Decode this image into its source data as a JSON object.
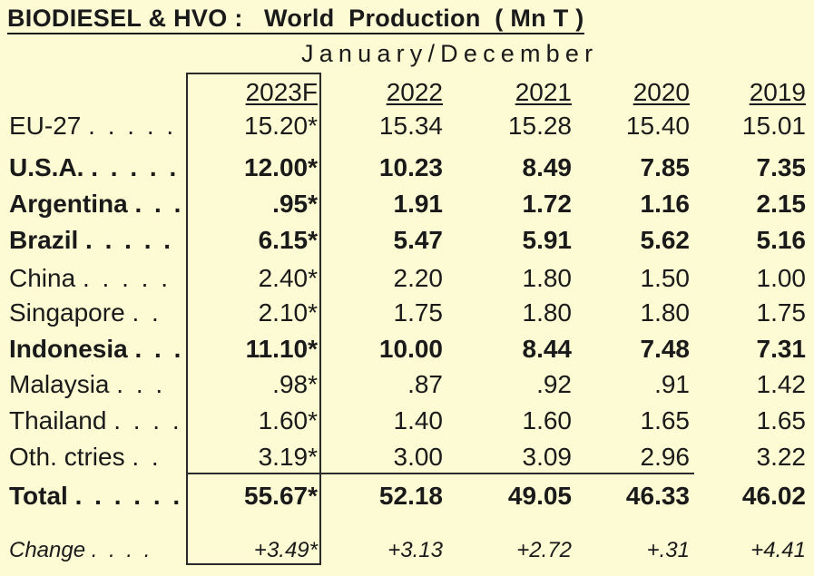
{
  "title": "BIODIESEL & HVO :   World  Production  ( Mn T )",
  "subtitle": "January/December",
  "columns": [
    "2023F",
    "2022",
    "2021",
    "2020",
    "2019"
  ],
  "rows": [
    {
      "label": "EU-27",
      "dots": ". . . . .",
      "values": [
        "15.20*",
        "15.34",
        "15.28",
        "15.40",
        "15.01"
      ],
      "bold": false
    },
    {
      "label": "U.S.A.",
      "dots": ". . . . .",
      "values": [
        "12.00*",
        "10.23",
        "8.49",
        "7.85",
        "7.35"
      ],
      "bold": true
    },
    {
      "label": "Argentina",
      "dots": ". . .",
      "values": [
        ".95*",
        "1.91",
        "1.72",
        "1.16",
        "2.15"
      ],
      "bold": true
    },
    {
      "label": "Brazil",
      "dots": ". . . . . .",
      "values": [
        "6.15*",
        "5.47",
        "5.91",
        "5.62",
        "5.16"
      ],
      "bold": true
    },
    {
      "label": "China",
      "dots": ". . . . . .",
      "values": [
        "2.40*",
        "2.20",
        "1.80",
        "1.50",
        "1.00"
      ],
      "bold": false
    },
    {
      "label": "Singapore",
      "dots": ". .",
      "values": [
        "2.10*",
        "1.75",
        "1.80",
        "1.80",
        "1.75"
      ],
      "bold": false
    },
    {
      "label": "Indonesia",
      "dots": ". . .",
      "values": [
        "11.10*",
        "10.00",
        "8.44",
        "7.48",
        "7.31"
      ],
      "bold": true
    },
    {
      "label": "Malaysia",
      "dots": ". . .",
      "values": [
        ".98*",
        ".87",
        ".92",
        ".91",
        "1.42"
      ],
      "bold": false
    },
    {
      "label": "Thailand",
      "dots": ". . . .",
      "values": [
        "1.60*",
        "1.40",
        "1.60",
        "1.65",
        "1.65"
      ],
      "bold": false
    },
    {
      "label": "Oth. ctries",
      "dots": ". .",
      "values": [
        "3.19*",
        "3.00",
        "3.09",
        "2.96",
        "3.22"
      ],
      "bold": false
    }
  ],
  "total": {
    "label": "Total",
    "dots": ". . . . . .",
    "values": [
      "55.67*",
      "52.18",
      "49.05",
      "46.33",
      "46.02"
    ]
  },
  "change": {
    "label": "Change",
    "dots": ". . . .",
    "values": [
      "+3.49*",
      "+3.13",
      "+2.72",
      "+.31",
      "+4.41"
    ]
  }
}
